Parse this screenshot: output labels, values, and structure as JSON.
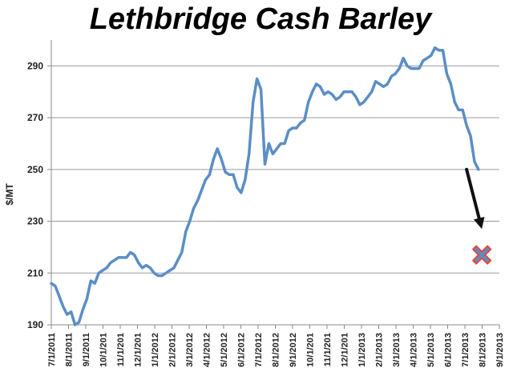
{
  "chart_data": {
    "type": "line",
    "title": "Lethbridge Cash Barley",
    "ylabel": "$/MT",
    "xlabel": "",
    "ylim": [
      190,
      300
    ],
    "yticks": [
      190,
      210,
      230,
      250,
      270,
      290
    ],
    "xlim": [
      "7/1/2011",
      "9/1/2013"
    ],
    "x_tick_labels": [
      "7/1/2011",
      "8/1/2011",
      "9/1/2011",
      "10/1/201",
      "11/1/201",
      "12/1/201",
      "1/1/2012",
      "2/1/2012",
      "3/1/2012",
      "4/1/2012",
      "5/1/2012",
      "6/1/2012",
      "7/1/2012",
      "8/1/2012",
      "9/1/2012",
      "10/1/201",
      "11/1/201",
      "12/1/201",
      "1/1/2013",
      "2/1/2013",
      "3/1/2013",
      "4/1/2013",
      "5/1/2013",
      "6/1/2013",
      "7/1/2013",
      "8/1/2013",
      "9/1/2013"
    ],
    "grid": "horizontal",
    "line_color": "#5b8ec6",
    "series": [
      {
        "points": [
          [
            "7/1/2011",
            206
          ],
          [
            "7/8/2011",
            205
          ],
          [
            "7/15/2011",
            201
          ],
          [
            "7/22/2011",
            197
          ],
          [
            "7/29/2011",
            194
          ],
          [
            "8/5/2011",
            195
          ],
          [
            "8/12/2011",
            190
          ],
          [
            "8/19/2011",
            191
          ],
          [
            "8/26/2011",
            196
          ],
          [
            "9/2/2011",
            200
          ],
          [
            "9/9/2011",
            207
          ],
          [
            "9/16/2011",
            206
          ],
          [
            "9/23/2011",
            210
          ],
          [
            "9/30/2011",
            211
          ],
          [
            "10/7/2011",
            212
          ],
          [
            "10/14/2011",
            214
          ],
          [
            "10/21/2011",
            215
          ],
          [
            "10/28/2011",
            216
          ],
          [
            "11/4/2011",
            216
          ],
          [
            "11/11/2011",
            216
          ],
          [
            "11/18/2011",
            218
          ],
          [
            "11/25/2011",
            217
          ],
          [
            "12/2/2011",
            214
          ],
          [
            "12/9/2011",
            212
          ],
          [
            "12/16/2011",
            213
          ],
          [
            "12/23/2011",
            212
          ],
          [
            "12/30/2011",
            210
          ],
          [
            "1/6/2012",
            209
          ],
          [
            "1/13/2012",
            209
          ],
          [
            "1/20/2012",
            210
          ],
          [
            "1/27/2012",
            211
          ],
          [
            "2/3/2012",
            212
          ],
          [
            "2/10/2012",
            215
          ],
          [
            "2/17/2012",
            218
          ],
          [
            "2/24/2012",
            226
          ],
          [
            "3/2/2012",
            230
          ],
          [
            "3/9/2012",
            235
          ],
          [
            "3/16/2012",
            238
          ],
          [
            "3/23/2012",
            242
          ],
          [
            "3/30/2012",
            246
          ],
          [
            "4/6/2012",
            248
          ],
          [
            "4/13/2012",
            254
          ],
          [
            "4/20/2012",
            258
          ],
          [
            "4/27/2012",
            254
          ],
          [
            "5/4/2012",
            249
          ],
          [
            "5/11/2012",
            248
          ],
          [
            "5/18/2012",
            248
          ],
          [
            "5/25/2012",
            243
          ],
          [
            "6/1/2012",
            241
          ],
          [
            "6/8/2012",
            246
          ],
          [
            "6/15/2012",
            256
          ],
          [
            "6/22/2012",
            276
          ],
          [
            "6/29/2012",
            285
          ],
          [
            "7/6/2012",
            281
          ],
          [
            "7/13/2012",
            252
          ],
          [
            "7/20/2012",
            260
          ],
          [
            "7/27/2012",
            256
          ],
          [
            "8/3/2012",
            258
          ],
          [
            "8/10/2012",
            260
          ],
          [
            "8/17/2012",
            260
          ],
          [
            "8/24/2012",
            265
          ],
          [
            "8/31/2012",
            266
          ],
          [
            "9/7/2012",
            266
          ],
          [
            "9/14/2012",
            268
          ],
          [
            "9/21/2012",
            269
          ],
          [
            "9/28/2012",
            276
          ],
          [
            "10/5/2012",
            280
          ],
          [
            "10/12/2012",
            283
          ],
          [
            "10/19/2012",
            282
          ],
          [
            "10/26/2012",
            279
          ],
          [
            "11/2/2012",
            280
          ],
          [
            "11/9/2012",
            279
          ],
          [
            "11/16/2012",
            277
          ],
          [
            "11/23/2012",
            278
          ],
          [
            "11/30/2012",
            280
          ],
          [
            "12/7/2012",
            280
          ],
          [
            "12/14/2012",
            280
          ],
          [
            "12/21/2012",
            278
          ],
          [
            "12/28/2012",
            275
          ],
          [
            "1/4/2013",
            276
          ],
          [
            "1/11/2013",
            278
          ],
          [
            "1/18/2013",
            280
          ],
          [
            "1/25/2013",
            284
          ],
          [
            "2/1/2013",
            283
          ],
          [
            "2/8/2013",
            282
          ],
          [
            "2/15/2013",
            283
          ],
          [
            "2/22/2013",
            286
          ],
          [
            "3/1/2013",
            287
          ],
          [
            "3/8/2013",
            289
          ],
          [
            "3/15/2013",
            293
          ],
          [
            "3/22/2013",
            290
          ],
          [
            "3/29/2013",
            289
          ],
          [
            "4/5/2013",
            289
          ],
          [
            "4/12/2013",
            289
          ],
          [
            "4/19/2013",
            292
          ],
          [
            "4/26/2013",
            293
          ],
          [
            "5/3/2013",
            294
          ],
          [
            "5/10/2013",
            297
          ],
          [
            "5/17/2013",
            296
          ],
          [
            "5/24/2013",
            296
          ],
          [
            "5/31/2013",
            287
          ],
          [
            "6/7/2013",
            283
          ],
          [
            "6/14/2013",
            276
          ],
          [
            "6/21/2013",
            273
          ],
          [
            "6/28/2013",
            273
          ],
          [
            "7/5/2013",
            267
          ],
          [
            "7/12/2013",
            263
          ],
          [
            "7/19/2013",
            253
          ],
          [
            "7/26/2013",
            250
          ]
        ]
      }
    ],
    "annotations": [
      {
        "type": "arrow",
        "color": "#111111",
        "from": [
          "7/5/2013",
          250
        ],
        "to": [
          "8/1/2013",
          227
        ]
      },
      {
        "type": "marker",
        "shape": "x",
        "fill": "#5b8ec6",
        "outline": "#e0483a",
        "at": [
          "8/1/2013",
          217
        ]
      }
    ]
  }
}
